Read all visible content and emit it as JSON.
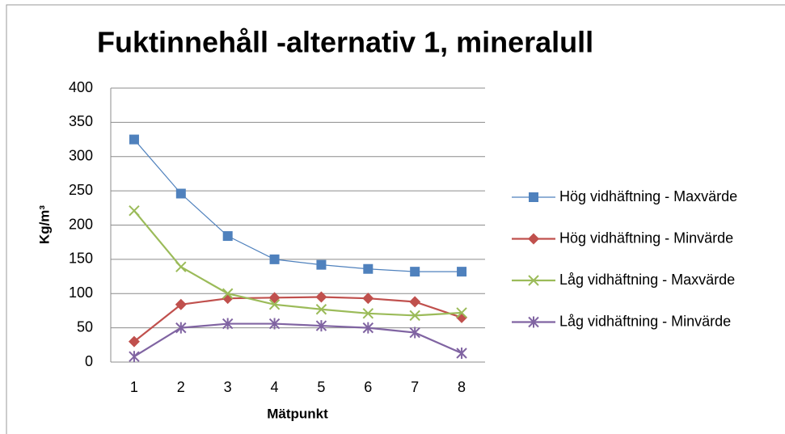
{
  "chart_data": {
    "type": "line",
    "title": "Fuktinnehåll -alternativ 1, mineralull",
    "y_label": "Kg/m³",
    "x_label": "Mätpunkt",
    "categories": [
      "1",
      "2",
      "3",
      "4",
      "5",
      "6",
      "7",
      "8"
    ],
    "series": [
      {
        "name": "Hög vidhäftning - Maxvärde",
        "color": "#4f81bd",
        "marker": "square",
        "values": [
          325,
          246,
          184,
          150,
          142,
          136,
          132,
          132
        ]
      },
      {
        "name": "Hög vidhäftning - Minvärde",
        "color": "#c0504d",
        "marker": "diamond",
        "values": [
          30,
          84,
          93,
          94,
          95,
          93,
          88,
          65
        ]
      },
      {
        "name": "Låg vidhäftning - Maxvärde",
        "color": "#9bbb59",
        "marker": "x",
        "values": [
          221,
          139,
          100,
          84,
          77,
          71,
          68,
          72
        ]
      },
      {
        "name": "Låg vidhäftning - Minvärde",
        "color": "#8064a2",
        "marker": "star",
        "values": [
          8,
          50,
          56,
          56,
          53,
          50,
          43,
          13
        ]
      }
    ],
    "ylim": [
      0,
      400
    ],
    "yticks": [
      0,
      50,
      100,
      150,
      200,
      250,
      300,
      350,
      400
    ],
    "grid": true,
    "legend": "right"
  }
}
